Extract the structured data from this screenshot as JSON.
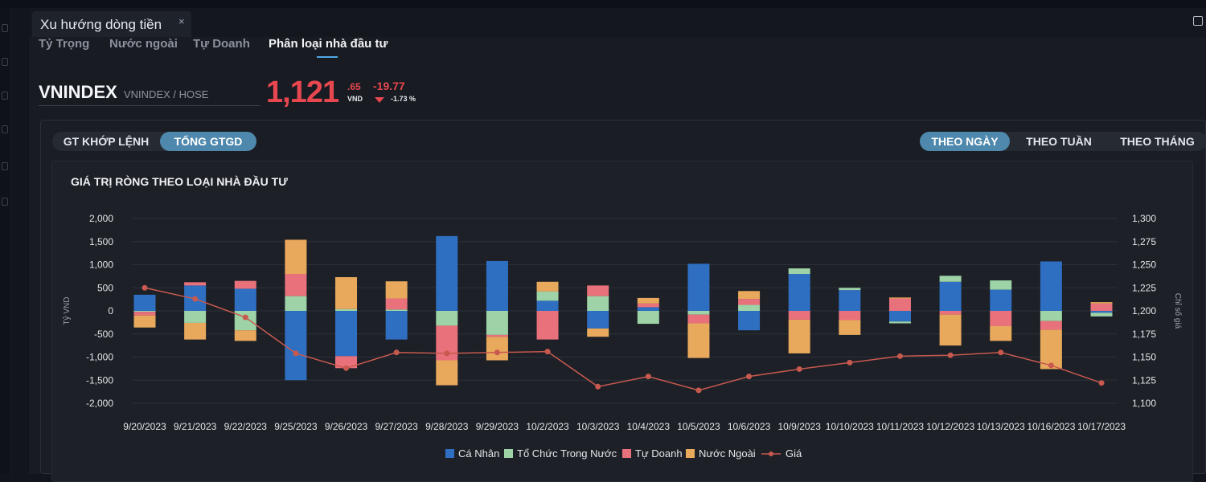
{
  "window": {
    "tab_title": "Xu hướng dòng tiền",
    "close_glyph": "×"
  },
  "subtabs": [
    "Tỷ Trọng",
    "Nước ngoài",
    "Tự Doanh",
    "Phân loại nhà đầu tư"
  ],
  "active_subtab": "Phân loại nhà đầu tư",
  "symbol": {
    "code": "VNINDEX",
    "exchange": "VNINDEX / HOSE"
  },
  "quote": {
    "price_int": "1,121",
    "price_dec": ".65",
    "unit": "VND",
    "change": "-19.77",
    "change_pct": "-1.73 %"
  },
  "value_toggle": {
    "options": [
      "GT KHỚP LỆNH",
      "TỔNG GTGD"
    ],
    "active": "TỔNG GTGD"
  },
  "period_toggle": {
    "options": [
      "THEO NGÀY",
      "THEO TUẦN",
      "THEO THÁNG"
    ],
    "active": "THEO NGÀY"
  },
  "colors": {
    "ca_nhan": "#2f6fc2",
    "to_chuc": "#9dd3a6",
    "tu_doanh": "#e8717b",
    "nuoc_ngoai": "#e8a95c",
    "gia": "#c8594f",
    "down": "#e8474f",
    "accent": "#4e88ad"
  },
  "chart_data": {
    "type": "bar",
    "stacked": true,
    "title": "GIÁ TRỊ RÒNG THEO LOẠI NHÀ ĐẦU TƯ",
    "ylabel": "Tỷ VND",
    "y2label": "Chỉ số giá",
    "ylim": [
      -2000,
      2000
    ],
    "yticks": [
      -2000,
      -1500,
      -1000,
      -500,
      0,
      500,
      1000,
      1500,
      2000
    ],
    "ytick_labels": [
      "-2,000",
      "-1,500",
      "-1,000",
      "-500",
      "0",
      "500",
      "1,000",
      "1,500",
      "2,000"
    ],
    "y2lim": [
      1100,
      1300
    ],
    "y2ticks": [
      1100,
      1125,
      1150,
      1175,
      1200,
      1225,
      1250,
      1275,
      1300
    ],
    "y2tick_labels": [
      "1,100",
      "1,125",
      "1,150",
      "1,175",
      "1,200",
      "1,225",
      "1,250",
      "1,275",
      "1,300"
    ],
    "categories": [
      "9/20/2023",
      "9/21/2023",
      "9/22/2023",
      "9/25/2023",
      "9/26/2023",
      "9/27/2023",
      "9/28/2023",
      "9/29/2023",
      "10/2/2023",
      "10/3/2023",
      "10/4/2023",
      "10/5/2023",
      "10/6/2023",
      "10/9/2023",
      "10/10/2023",
      "10/11/2023",
      "10/12/2023",
      "10/13/2023",
      "10/16/2023",
      "10/17/2023"
    ],
    "series": [
      {
        "name": "Cá Nhân",
        "color_key": "ca_nhan",
        "values": [
          350,
          550,
          480,
          -1500,
          -980,
          -620,
          1620,
          1080,
          220,
          -380,
          80,
          1020,
          -420,
          800,
          450,
          -230,
          630,
          460,
          1070,
          -40
        ]
      },
      {
        "name": "Tổ Chức Trong Nước",
        "color_key": "to_chuc",
        "values": [
          -20,
          -260,
          -420,
          320,
          40,
          30,
          -320,
          -520,
          200,
          320,
          -280,
          -80,
          130,
          120,
          50,
          -40,
          130,
          200,
          -220,
          -80
        ]
      },
      {
        "name": "Tự Doanh",
        "color_key": "tu_doanh",
        "values": [
          -80,
          70,
          170,
          480,
          -260,
          240,
          -750,
          -40,
          -620,
          230,
          80,
          -190,
          130,
          -190,
          -200,
          270,
          -80,
          -330,
          -190,
          160
        ]
      },
      {
        "name": "Nước Ngoài",
        "color_key": "nuoc_ngoai",
        "values": [
          -260,
          -360,
          -230,
          740,
          690,
          370,
          -540,
          -510,
          210,
          -180,
          120,
          -750,
          170,
          -730,
          -320,
          20,
          -670,
          -320,
          -850,
          30
        ]
      }
    ],
    "line": {
      "name": "Giá",
      "color_key": "gia",
      "values": [
        1225,
        1213,
        1193,
        1154,
        1138,
        1155,
        1154,
        1155,
        1156,
        1118,
        1129,
        1114,
        1129,
        1137,
        1144,
        1151,
        1152,
        1155,
        1141,
        1122
      ]
    },
    "legend": {
      "position": "bottom-center",
      "entries": [
        "Cá Nhân",
        "Tổ Chức Trong Nước",
        "Tự Doanh",
        "Nước Ngoài",
        "Giá"
      ]
    }
  }
}
